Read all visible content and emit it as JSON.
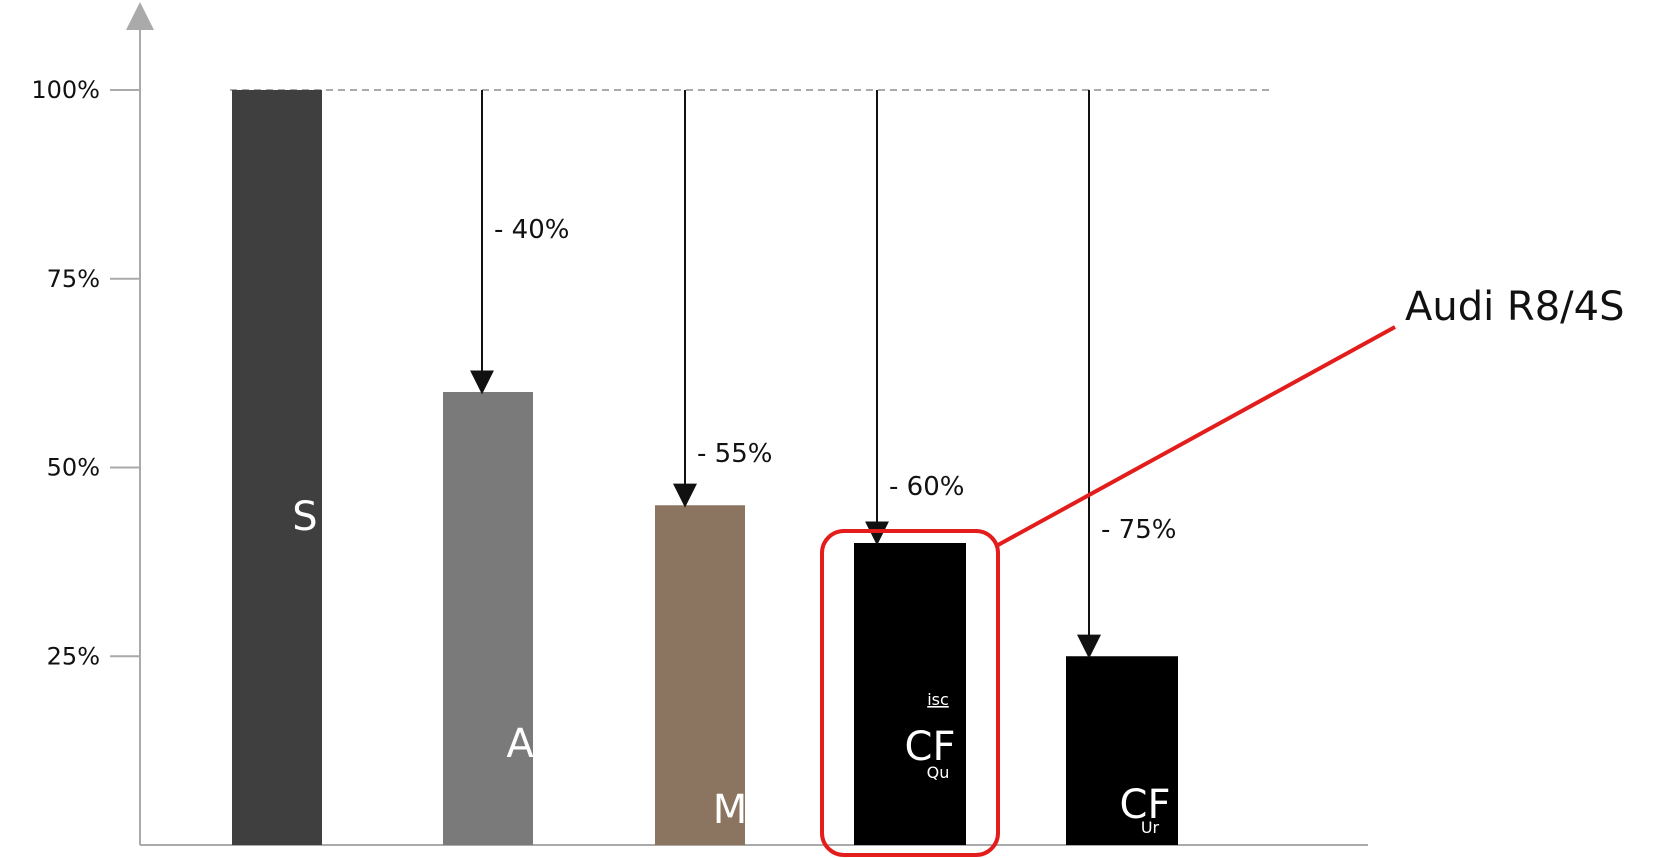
{
  "chart_data": {
    "type": "bar",
    "categories": [
      "S",
      "A",
      "M",
      "CF",
      "CF"
    ],
    "values": [
      100,
      60,
      45,
      40,
      25
    ],
    "changes": [
      "- 40%",
      "- 55%",
      "- 60%",
      "- 75%"
    ],
    "bar_colors": [
      "#3f3f3f",
      "#7a7a7a",
      "#8b7560",
      "#000000",
      "#000000"
    ],
    "bar_sublabels": [
      "",
      "",
      "",
      "Qu",
      "Ur"
    ],
    "bar_toplabels": [
      "",
      "",
      "",
      "isc",
      ""
    ],
    "yticks": [
      "25%",
      "50%",
      "75%",
      "100%"
    ],
    "ylim": [
      0,
      100
    ],
    "reference_line": 100,
    "grid": false,
    "callout": {
      "label": "Audi R8/4S",
      "target_index": 3,
      "color": "#e31c1c"
    }
  }
}
